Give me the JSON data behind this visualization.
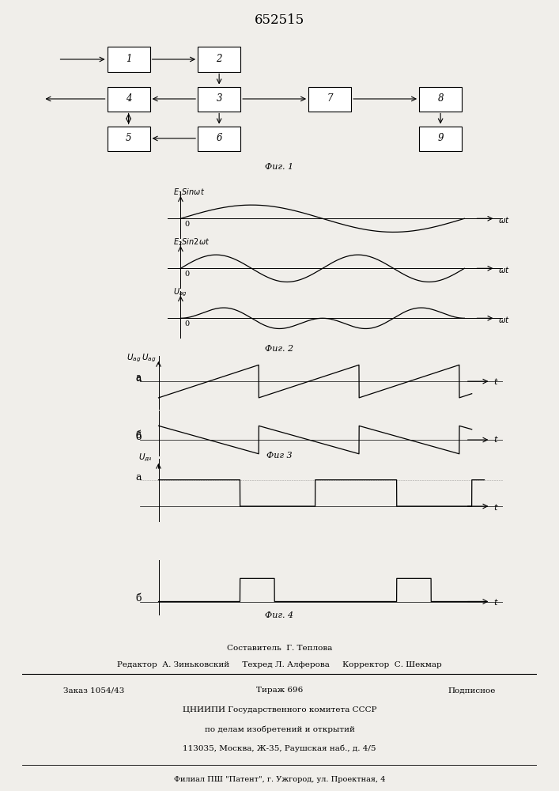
{
  "title": "652515",
  "fig1_label": "Фиг. 1",
  "fig2_label": "Фиг. 2",
  "fig3_label": "Фиг 3",
  "fig4_label": "Фиг. 4",
  "bg_color": "#f0eeea"
}
